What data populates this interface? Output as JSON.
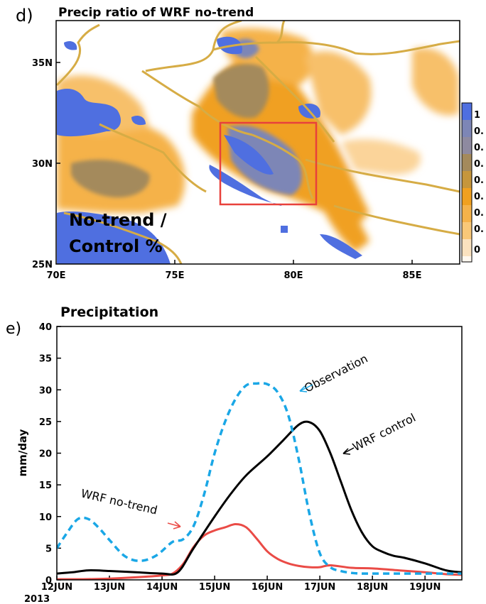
{
  "colors": {
    "blue": "#4f6fe0",
    "slate": "#7d86b6",
    "brown": "#a48a5c",
    "orange": "#f0a020",
    "light_orange": "#fbd49a",
    "border_line": "#d6ac45",
    "box": "#e8413b",
    "observation": "#1aa7e6",
    "control": "#000000",
    "no_trend": "#ea4b46"
  },
  "panel_d": {
    "letter": "d)",
    "title": "Precip ratio of WRF no-trend",
    "annotation_line1": "No-trend /",
    "annotation_line2": "Control %",
    "y_ticks": [
      "35N",
      "30N",
      "25N"
    ],
    "x_ticks": [
      "70E",
      "75E",
      "80E",
      "85E"
    ],
    "colorbar_labels": [
      "1",
      "0.",
      "0.",
      "0.",
      "0.",
      "0.",
      "0.",
      "0.",
      "0.",
      "0"
    ]
  },
  "panel_e": {
    "letter": "e)",
    "title": "Precipitation",
    "annotation_observation": "Observation",
    "annotation_control": "WRF control",
    "annotation_notrend": "WRF no-trend",
    "year_label": "2013"
  },
  "chart_data": [
    {
      "type": "heatmap",
      "title": "Precip ratio of WRF no-trend",
      "x_ticks": [
        "70E",
        "75E",
        "80E",
        "85E"
      ],
      "y_ticks": [
        "25N",
        "30N",
        "35N"
      ],
      "xlim": [
        70,
        87
      ],
      "ylim": [
        25,
        37
      ],
      "highlight_box": {
        "lon": [
          77,
          81
        ],
        "lat": [
          28,
          32
        ]
      },
      "colorbar": [
        "1",
        "0.",
        "0.",
        "0.",
        "0.",
        "0.",
        "0.",
        "0.",
        "0.",
        "0"
      ]
    },
    {
      "type": "line",
      "title": "Precipitation",
      "ylabel": "mm/day",
      "xlabel": "",
      "ylim": [
        0,
        40
      ],
      "xlim": [
        0,
        7.7
      ],
      "y_ticks": [
        0,
        5,
        10,
        15,
        20,
        25,
        30,
        35,
        40
      ],
      "x_ticks": [
        "12JUN",
        "13JUN",
        "14JUN",
        "15JUN",
        "16JUN",
        "17JUN",
        "18JUN",
        "19JUN"
      ],
      "series": [
        {
          "name": "Observation",
          "x": [
            0,
            0.2,
            0.4,
            0.6,
            0.8,
            1.0,
            1.3,
            1.6,
            1.9,
            2.2,
            2.4,
            2.6,
            2.8,
            3.0,
            3.2,
            3.4,
            3.6,
            3.8,
            4.0,
            4.2,
            4.4,
            4.6,
            4.8,
            5.0,
            5.2,
            5.4,
            5.6,
            5.8,
            6.0,
            6.3,
            6.6,
            7.0,
            7.4,
            7.7
          ],
          "values": [
            5,
            7.5,
            9.6,
            9.6,
            8.2,
            6.3,
            3.7,
            3.0,
            3.9,
            6.0,
            6.4,
            8.5,
            13.5,
            20,
            25,
            28.6,
            30.7,
            31.0,
            30.9,
            29.6,
            26,
            19,
            10.5,
            4.2,
            2.0,
            1.4,
            1.1,
            1.0,
            1.0,
            1.0,
            1.0,
            1.0,
            1.0,
            1.0
          ]
        },
        {
          "name": "WRF control",
          "x": [
            0,
            0.3,
            0.6,
            1.0,
            1.5,
            2.0,
            2.3,
            2.6,
            3.0,
            3.3,
            3.6,
            4.0,
            4.3,
            4.6,
            4.8,
            5.0,
            5.2,
            5.4,
            5.6,
            5.8,
            6.0,
            6.2,
            6.4,
            6.6,
            7.0,
            7.4,
            7.7
          ],
          "values": [
            1,
            1.2,
            1.5,
            1.4,
            1.2,
            1.0,
            1.2,
            5,
            10,
            13.5,
            16.5,
            19.5,
            22,
            24.5,
            24.9,
            23.5,
            20,
            15.5,
            11,
            7.5,
            5.3,
            4.4,
            3.8,
            3.5,
            2.6,
            1.5,
            1.2
          ]
        },
        {
          "name": "WRF no-trend",
          "x": [
            0,
            0.5,
            1.0,
            1.5,
            2.0,
            2.2,
            2.4,
            2.6,
            2.8,
            3.0,
            3.2,
            3.4,
            3.6,
            3.8,
            4.0,
            4.2,
            4.4,
            4.6,
            4.8,
            5.0,
            5.2,
            5.6,
            6.0,
            6.5,
            7.0,
            7.4,
            7.7
          ],
          "values": [
            0.1,
            0.1,
            0.2,
            0.4,
            0.7,
            1.0,
            2.5,
            5.2,
            7.0,
            7.8,
            8.3,
            8.8,
            8.3,
            6.5,
            4.5,
            3.3,
            2.6,
            2.2,
            2.0,
            2.0,
            2.3,
            1.9,
            1.8,
            1.5,
            1.2,
            0.9,
            0.8
          ]
        }
      ]
    }
  ]
}
